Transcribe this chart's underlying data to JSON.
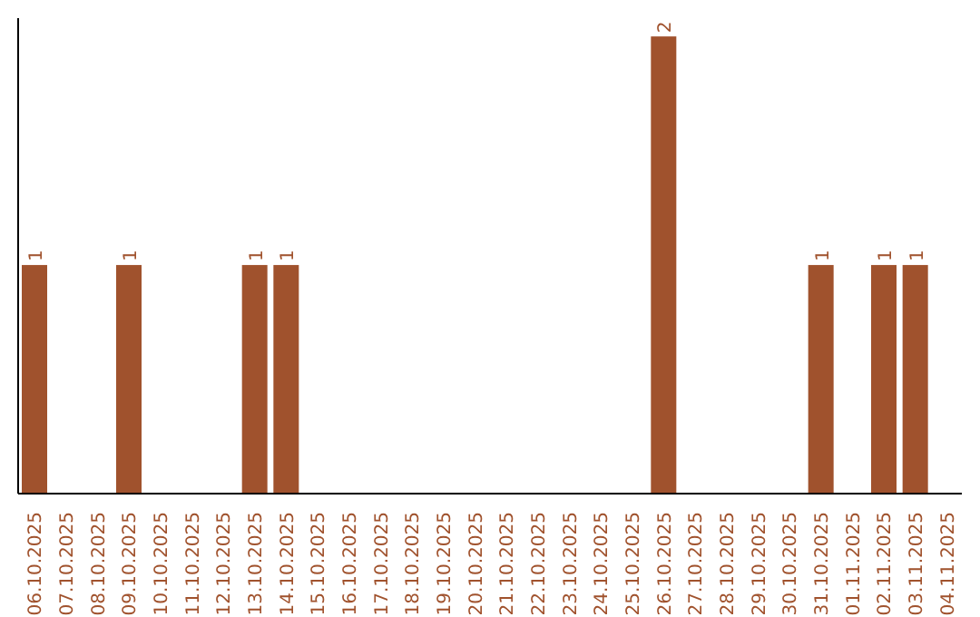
{
  "chart_data": {
    "type": "bar",
    "categories": [
      "06.10.2025",
      "07.10.2025",
      "08.10.2025",
      "09.10.2025",
      "10.10.2025",
      "11.10.2025",
      "12.10.2025",
      "13.10.2025",
      "14.10.2025",
      "15.10.2025",
      "16.10.2025",
      "17.10.2025",
      "18.10.2025",
      "19.10.2025",
      "20.10.2025",
      "21.10.2025",
      "22.10.2025",
      "23.10.2025",
      "24.10.2025",
      "25.10.2025",
      "26.10.2025",
      "27.10.2025",
      "28.10.2025",
      "29.10.2025",
      "30.10.2025",
      "31.10.2025",
      "01.11.2025",
      "02.11.2025",
      "03.11.2025",
      "04.11.2025"
    ],
    "values": [
      1,
      0,
      0,
      1,
      0,
      0,
      0,
      1,
      1,
      0,
      0,
      0,
      0,
      0,
      0,
      0,
      0,
      0,
      0,
      0,
      2,
      0,
      0,
      0,
      0,
      1,
      0,
      1,
      1,
      0
    ],
    "value_labels": [
      "1",
      null,
      null,
      "1",
      null,
      null,
      null,
      "1",
      "1",
      null,
      null,
      null,
      null,
      null,
      null,
      null,
      null,
      null,
      null,
      null,
      "2",
      null,
      null,
      null,
      null,
      "1",
      null,
      "1",
      "1",
      null
    ],
    "color": "#a0522d",
    "ylim": [
      0,
      2.08
    ],
    "tick_labels": "x"
  }
}
